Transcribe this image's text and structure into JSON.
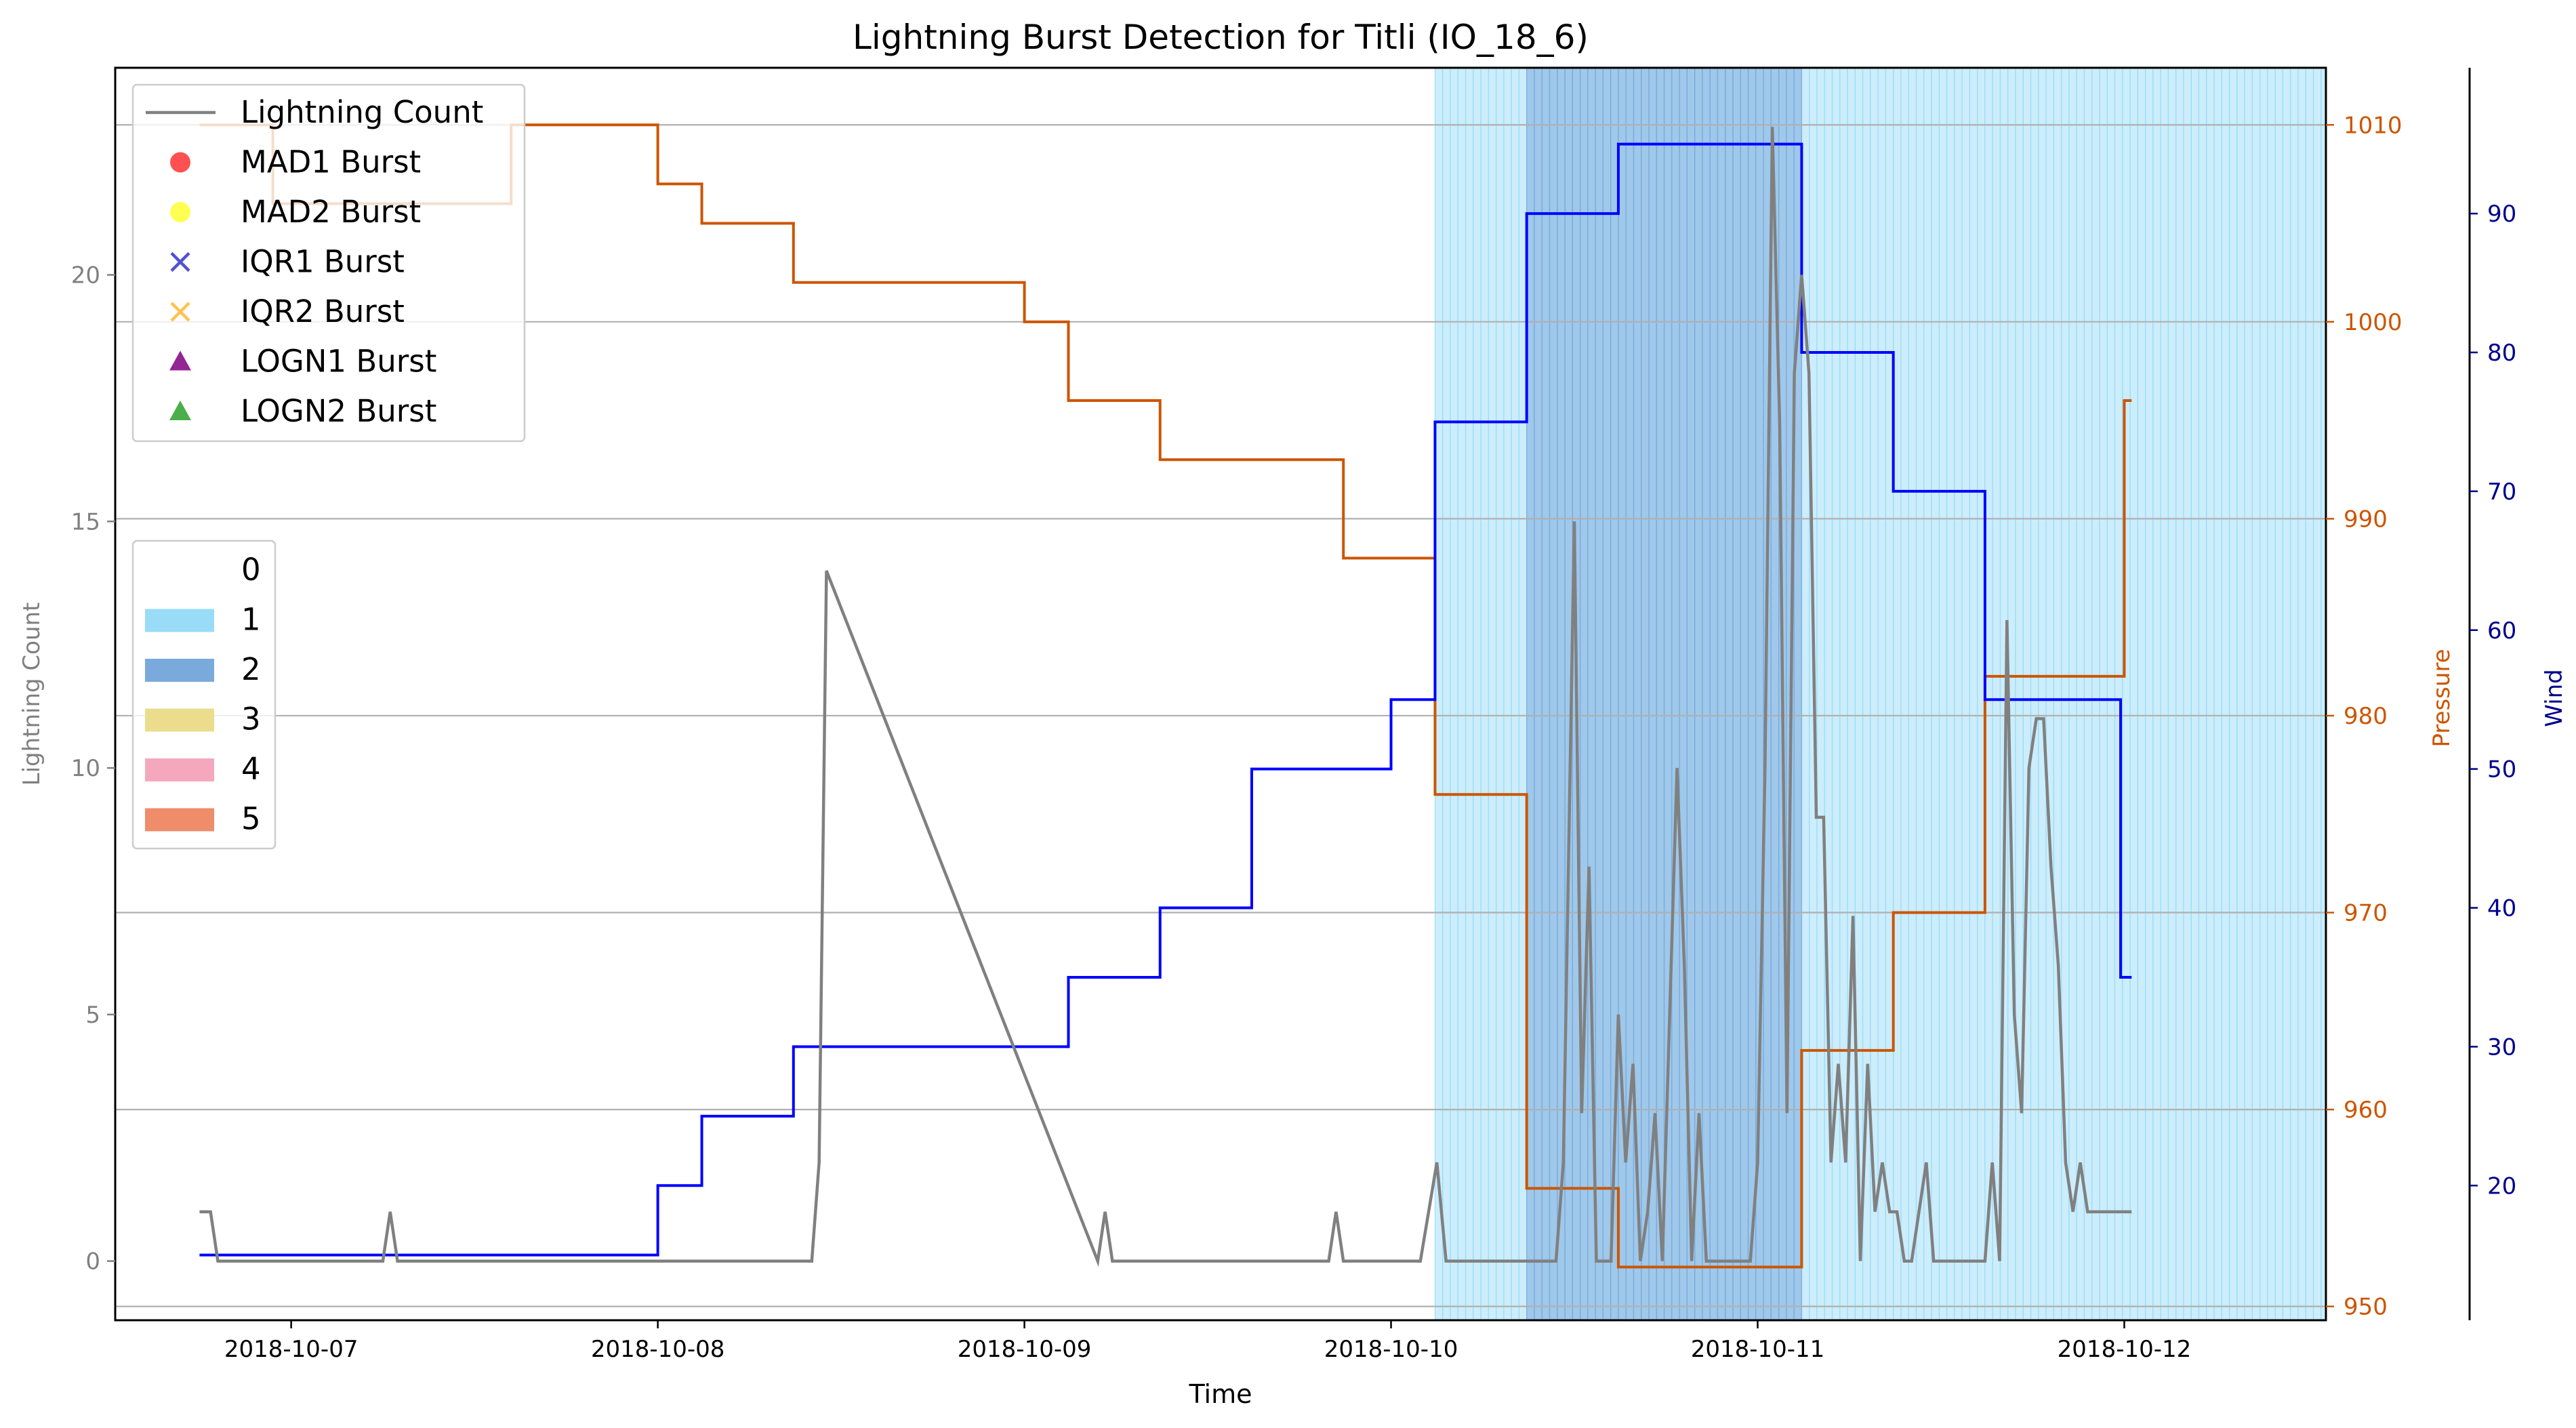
{
  "chart_data": {
    "type": "line",
    "title": "Lightning Burst Detection for Titli (IO_18_6)",
    "xlabel": "Time",
    "x_ticks": [
      "2018-10-07",
      "2018-10-08",
      "2018-10-09",
      "2018-10-10",
      "2018-10-11",
      "2018-10-12"
    ],
    "x_range_days": [
      6.52,
      12.55
    ],
    "grid": "horizontal lines at pressure axis ticks",
    "axes": {
      "left": {
        "label": "Lightning Count",
        "ylim": [
          -1.2,
          24.2
        ],
        "ticks": [
          0,
          5,
          10,
          15,
          20
        ],
        "color": "#808080"
      },
      "right1": {
        "label": "Pressure",
        "ylim": [
          949.3,
          1012.9
        ],
        "ticks": [
          950,
          960,
          970,
          980,
          990,
          1000,
          1010
        ],
        "color": "#cc5500"
      },
      "right2": {
        "label": "Wind",
        "ylim": [
          10.3,
          100.5
        ],
        "ticks": [
          20,
          30,
          40,
          50,
          60,
          70,
          80,
          90
        ],
        "color": "#00008b"
      }
    },
    "legend_lines": {
      "position": "upper-left",
      "entries": [
        {
          "label": "Lightning Count",
          "marker": "line",
          "color": "#808080"
        },
        {
          "label": "MAD1 Burst",
          "marker": "circle",
          "color": "#ff3333"
        },
        {
          "label": "MAD2 Burst",
          "marker": "circle",
          "color": "#ffff33"
        },
        {
          "label": "IQR1 Burst",
          "marker": "x",
          "color": "#3333cc"
        },
        {
          "label": "IQR2 Burst",
          "marker": "x",
          "color": "#ffb733"
        },
        {
          "label": "LOGN1 Burst",
          "marker": "triangle",
          "color": "#800080"
        },
        {
          "label": "LOGN2 Burst",
          "marker": "triangle",
          "color": "#2ca02c"
        }
      ]
    },
    "legend_categories": {
      "position": "center-left",
      "entries": [
        {
          "label": "0",
          "color": "#ffffff"
        },
        {
          "label": "1",
          "color": "#99dcf7"
        },
        {
          "label": "2",
          "color": "#7aaadc"
        },
        {
          "label": "3",
          "color": "#ecdd8d"
        },
        {
          "label": "4",
          "color": "#f5a8bd"
        },
        {
          "label": "5",
          "color": "#ef8c69"
        }
      ]
    },
    "category_spans": [
      {
        "category": "1",
        "start": 10.12,
        "end": 12.63,
        "color": "#99dcf7"
      },
      {
        "category": "2",
        "start": 10.37,
        "end": 11.12,
        "color": "#7aaadc"
      }
    ],
    "series": [
      {
        "name": "Lightning Count",
        "axis": "left",
        "color": "#808080",
        "x": [
          6.75,
          6.78,
          6.8,
          7.25,
          7.27,
          7.29,
          8.42,
          8.44,
          8.46,
          9.2,
          9.22,
          9.24,
          9.83,
          9.85,
          9.87,
          10.08,
          10.125,
          10.15,
          10.45,
          10.47,
          10.5,
          10.52,
          10.54,
          10.56,
          10.58,
          10.6,
          10.62,
          10.64,
          10.66,
          10.68,
          10.7,
          10.72,
          10.74,
          10.76,
          10.78,
          10.8,
          10.82,
          10.84,
          10.86,
          10.88,
          10.9,
          10.92,
          10.94,
          10.96,
          10.98,
          11.0,
          11.02,
          11.04,
          11.06,
          11.08,
          11.1,
          11.12,
          11.14,
          11.16,
          11.18,
          11.2,
          11.22,
          11.24,
          11.26,
          11.28,
          11.3,
          11.32,
          11.34,
          11.36,
          11.38,
          11.4,
          11.42,
          11.44,
          11.46,
          11.48,
          11.5,
          11.52,
          11.54,
          11.56,
          11.58,
          11.6,
          11.62,
          11.64,
          11.66,
          11.68,
          11.7,
          11.72,
          11.74,
          11.76,
          11.78,
          11.8,
          11.82,
          11.84,
          11.86,
          11.88,
          11.9,
          11.92,
          11.94,
          11.96,
          11.98,
          12.0,
          12.02
        ],
        "values": [
          1,
          1,
          0,
          0,
          1,
          0,
          0,
          2,
          14,
          0,
          1,
          0,
          0,
          1,
          0,
          0,
          2,
          0,
          0,
          2,
          15,
          3,
          8,
          0,
          0,
          0,
          5,
          2,
          4,
          0,
          1,
          3,
          0,
          5,
          10,
          6,
          0,
          3,
          0,
          0,
          0,
          0,
          0,
          0,
          0,
          2,
          10,
          23,
          17,
          3,
          18,
          20,
          18,
          9,
          9,
          2,
          4,
          2,
          7,
          0,
          4,
          1,
          2,
          1,
          1,
          0,
          0,
          1,
          2,
          0,
          0,
          0,
          0,
          0,
          0,
          0,
          0,
          2,
          0,
          13,
          5,
          3,
          10,
          11,
          11,
          8,
          6,
          2,
          1,
          2,
          1,
          1,
          1,
          1,
          1,
          1,
          1
        ]
      },
      {
        "name": "Pressure",
        "axis": "right1",
        "color": "#cc5500",
        "step": true,
        "x": [
          6.75,
          6.95,
          7.0,
          7.6,
          8.0,
          8.12,
          8.37,
          9.0,
          9.12,
          9.37,
          9.87,
          10.12,
          10.37,
          10.62,
          11.12,
          11.37,
          11.62,
          12.0,
          12.02
        ],
        "values": [
          1010,
          1006,
          1006,
          1010,
          1007,
          1005,
          1002,
          1000,
          996,
          993,
          988,
          976,
          956,
          952,
          963,
          970,
          982,
          996,
          996
        ]
      },
      {
        "name": "Wind",
        "axis": "right2",
        "color": "#0000ff",
        "step": true,
        "x": [
          6.75,
          8.0,
          8.12,
          8.37,
          9.12,
          9.37,
          9.62,
          10.0,
          10.12,
          10.37,
          10.62,
          11.12,
          11.37,
          11.62,
          11.99,
          12.02
        ],
        "values": [
          15,
          20,
          25,
          30,
          35,
          40,
          50,
          55,
          75,
          90,
          95,
          80,
          70,
          55,
          35,
          35
        ]
      }
    ]
  }
}
